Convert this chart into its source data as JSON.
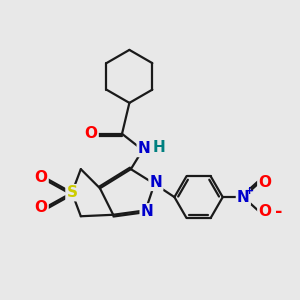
{
  "bg_color": "#e8e8e8",
  "bond_color": "#1a1a1a",
  "bond_width": 1.6,
  "dbo": 0.06,
  "atom_colors": {
    "O": "#ff0000",
    "N": "#0000cc",
    "S": "#cccc00",
    "H": "#008080",
    "N_plus": "#0000cc",
    "O_minus": "#ff0000"
  },
  "fs": 11
}
